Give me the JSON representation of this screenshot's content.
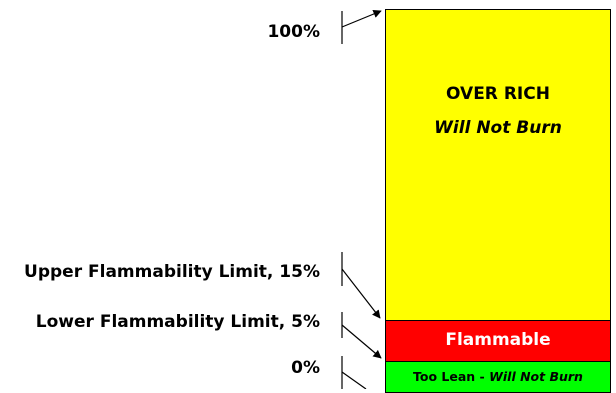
{
  "labels": {
    "top": "100%",
    "upper_limit": "Upper Flammability Limit, 15%",
    "lower_limit": "Lower Flammability Limit, 5%",
    "bottom": "0%"
  },
  "bands": {
    "over_rich": {
      "title": "OVER RICH",
      "subtitle": "Will Not Burn",
      "color": "#ffff00"
    },
    "flammable": {
      "title": "Flammable",
      "color": "#ff0000"
    },
    "too_lean": {
      "title": "Too Lean - ",
      "subtitle": "Will Not Burn",
      "color": "#00ff00"
    }
  }
}
